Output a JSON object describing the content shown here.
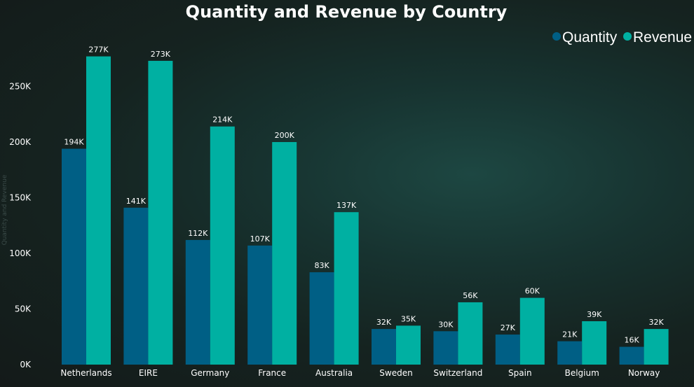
{
  "chart_data": {
    "type": "bar",
    "title": "Quantity and Revenue by Country",
    "ylabel": "Quantity and Revenue",
    "xlabel": "",
    "ylim": [
      0,
      300000
    ],
    "yticks": [
      0,
      50000,
      100000,
      150000,
      200000,
      250000
    ],
    "ytick_labels": [
      "0K",
      "50K",
      "100K",
      "150K",
      "200K",
      "250K"
    ],
    "grid": false,
    "legend_position": "top-right",
    "categories": [
      "Netherlands",
      "EIRE",
      "Germany",
      "France",
      "Australia",
      "Sweden",
      "Switzerland",
      "Spain",
      "Belgium",
      "Norway"
    ],
    "series": [
      {
        "name": "Quantity",
        "color": "#005f85",
        "values": [
          194000,
          141000,
          112000,
          107000,
          83000,
          32000,
          30000,
          27000,
          21000,
          16000
        ],
        "labels": [
          "194K",
          "141K",
          "112K",
          "107K",
          "83K",
          "32K",
          "30K",
          "27K",
          "21K",
          "16K"
        ]
      },
      {
        "name": "Revenue",
        "color": "#00b0a2",
        "values": [
          277000,
          273000,
          214000,
          200000,
          137000,
          35000,
          56000,
          60000,
          39000,
          32000
        ],
        "labels": [
          "277K",
          "273K",
          "214K",
          "200K",
          "137K",
          "35K",
          "56K",
          "60K",
          "39K",
          "32K"
        ]
      }
    ]
  }
}
